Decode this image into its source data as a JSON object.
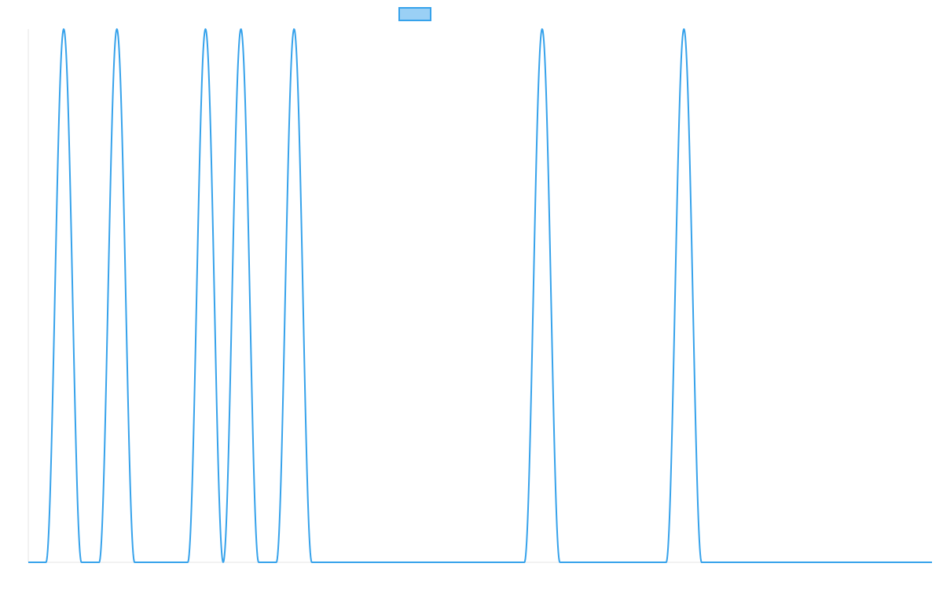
{
  "chart_data": {
    "type": "line",
    "title": "",
    "xlabel": "",
    "ylabel": "",
    "legend": {
      "position": "top-center",
      "entries": [
        {
          "label": "",
          "fill_color": "#9ad0f5",
          "stroke_color": "#36a2eb"
        }
      ]
    },
    "axes": {
      "xlim": [
        0,
        51
      ],
      "ylim": [
        0,
        1
      ],
      "grid": false,
      "tick_labels": false
    },
    "series": [
      {
        "color": "#36a2eb",
        "fill": false,
        "peaks_at_x": [
          2,
          5,
          10,
          12,
          15,
          29,
          37
        ],
        "peak_half_width": 1,
        "shape": "sine-pulse",
        "baseline": 0,
        "peak_value": 1
      }
    ]
  }
}
